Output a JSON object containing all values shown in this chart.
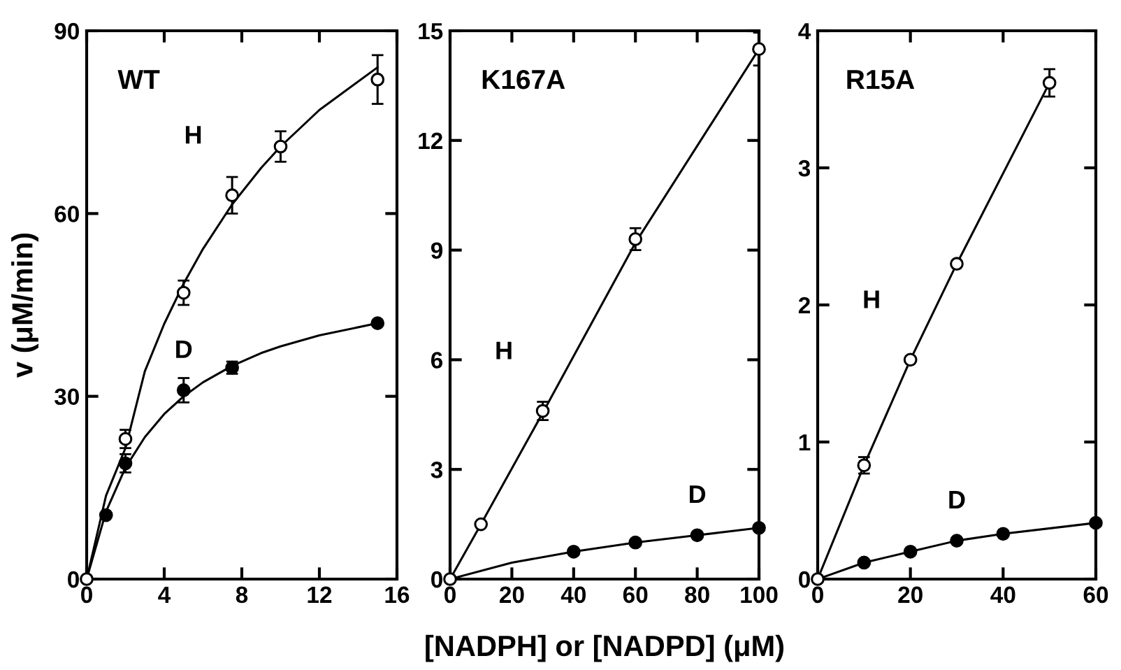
{
  "chart_data": [
    {
      "type": "scatter",
      "title": "WT",
      "ylabel": "v (μM/min)",
      "xlim": [
        0,
        16
      ],
      "xticks": [
        0,
        4,
        8,
        12,
        16
      ],
      "ylim": [
        0,
        90
      ],
      "yticks": [
        0,
        30,
        60,
        90
      ],
      "grid": false,
      "marker": "circle",
      "series": [
        {
          "type": "line",
          "color": "#000000",
          "marker": "none",
          "x": [
            0,
            1,
            2,
            3,
            4,
            5,
            6,
            7.5,
            9,
            10,
            12,
            15
          ],
          "values": [
            0,
            13.7,
            21.5,
            34.1,
            41.9,
            48.5,
            54.2,
            61.5,
            67.5,
            71.0,
            77.0,
            84.0
          ]
        },
        {
          "type": "line",
          "color": "#000000",
          "marker": "none",
          "x": [
            0,
            1,
            2,
            3,
            4,
            5,
            6,
            7.5,
            9,
            10,
            12,
            15
          ],
          "values": [
            0,
            11.1,
            18.3,
            23.3,
            27.1,
            30.0,
            32.3,
            35.0,
            37.1,
            38.2,
            40.0,
            42.0
          ]
        },
        {
          "name": "H",
          "color": "#ffffff",
          "x": [
            0,
            2,
            5,
            7.5,
            10,
            15
          ],
          "values": [
            0,
            23,
            47,
            63,
            71,
            82
          ],
          "errors": [
            null,
            1.5,
            2,
            3,
            2.5,
            4
          ]
        },
        {
          "name": "D",
          "color": "#000000",
          "x": [
            1,
            2,
            5,
            7.5,
            15
          ],
          "values": [
            10.5,
            19,
            31,
            34.7,
            42
          ],
          "errors": [
            null,
            1.5,
            2,
            1,
            null
          ]
        }
      ]
    },
    {
      "type": "scatter",
      "title": "K167A",
      "xlabel": "[NADPH] or [NADPD] (μM)",
      "xlim": [
        0,
        100
      ],
      "xticks": [
        0,
        20,
        40,
        60,
        80,
        100
      ],
      "ylim": [
        0,
        15
      ],
      "yticks": [
        0,
        3,
        6,
        9,
        12,
        15
      ],
      "grid": false,
      "marker": "circle",
      "series": [
        {
          "type": "line",
          "color": "#000000",
          "marker": "none",
          "x": [
            0,
            10,
            30,
            60,
            100
          ],
          "values": [
            0,
            1.5,
            4.55,
            9.2,
            14.5
          ]
        },
        {
          "type": "line",
          "color": "#000000",
          "marker": "none",
          "x": [
            0,
            20,
            40,
            60,
            80,
            100
          ],
          "values": [
            0,
            0.45,
            0.75,
            1.0,
            1.2,
            1.4
          ]
        },
        {
          "name": "H",
          "color": "#ffffff",
          "x": [
            0,
            10,
            30,
            60,
            100
          ],
          "values": [
            0,
            1.5,
            4.6,
            9.3,
            14.5
          ],
          "errors": [
            null,
            null,
            0.25,
            0.3,
            0.45
          ]
        },
        {
          "name": "D",
          "color": "#000000",
          "x": [
            40,
            60,
            80,
            100
          ],
          "values": [
            0.75,
            1.0,
            1.2,
            1.4
          ]
        }
      ]
    },
    {
      "type": "scatter",
      "title": "R15A",
      "xlim": [
        0,
        60
      ],
      "xticks": [
        0,
        20,
        40,
        60
      ],
      "ylim": [
        0,
        4
      ],
      "yticks": [
        0,
        1,
        2,
        3,
        4
      ],
      "grid": false,
      "marker": "circle",
      "series": [
        {
          "type": "line",
          "color": "#000000",
          "marker": "none",
          "x": [
            0,
            10,
            20,
            30,
            50
          ],
          "values": [
            0,
            0.83,
            1.6,
            2.3,
            3.62
          ]
        },
        {
          "type": "line",
          "color": "#000000",
          "marker": "none",
          "x": [
            0,
            10,
            20,
            30,
            40,
            60
          ],
          "values": [
            0,
            0.12,
            0.2,
            0.28,
            0.33,
            0.41
          ]
        },
        {
          "name": "H",
          "color": "#ffffff",
          "x": [
            0,
            10,
            20,
            30,
            50
          ],
          "values": [
            0,
            0.83,
            1.6,
            2.3,
            3.62
          ],
          "errors": [
            null,
            0.06,
            null,
            null,
            0.1
          ]
        },
        {
          "name": "D",
          "color": "#000000",
          "x": [
            10,
            20,
            30,
            40,
            60
          ],
          "values": [
            0.12,
            0.2,
            0.28,
            0.33,
            0.41
          ]
        }
      ]
    }
  ]
}
